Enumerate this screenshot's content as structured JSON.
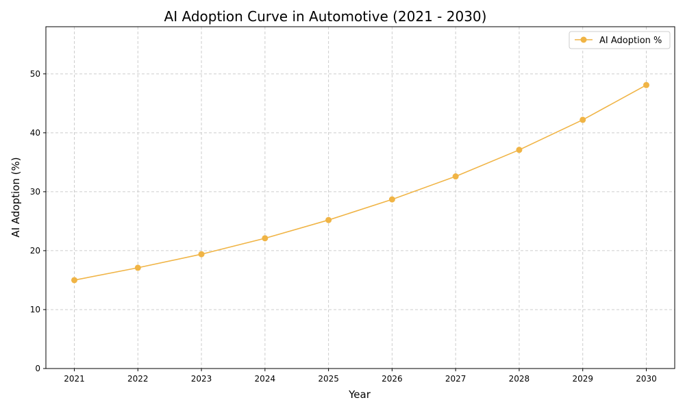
{
  "chart_data": {
    "type": "line",
    "title": "AI Adoption Curve in Automotive (2021 - 2030)",
    "xlabel": "Year",
    "ylabel": "AI Adoption (%)",
    "categories": [
      "2021",
      "2022",
      "2023",
      "2024",
      "2025",
      "2026",
      "2027",
      "2028",
      "2029",
      "2030"
    ],
    "series": [
      {
        "name": "AI Adoption %",
        "color": "#f0b445",
        "marker": "circle",
        "values": [
          15.0,
          17.1,
          19.4,
          22.1,
          25.2,
          28.7,
          32.6,
          37.1,
          42.2,
          48.1
        ]
      }
    ],
    "ylim": [
      0,
      58
    ],
    "yticks": [
      0,
      10,
      20,
      30,
      40,
      50
    ],
    "grid": true,
    "legend_position": "top-right"
  }
}
